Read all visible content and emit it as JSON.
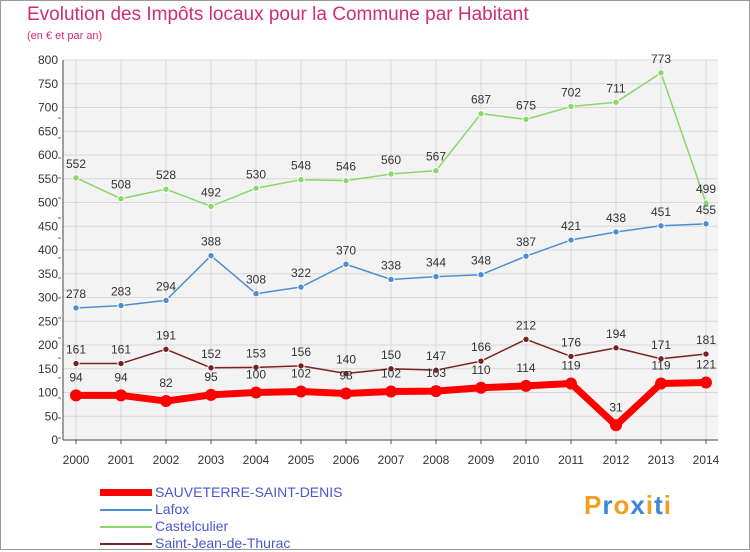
{
  "header": {
    "title": "Evolution des Impôts locaux pour la Commune par Habitant",
    "subtitle": "(en € et par an)"
  },
  "logo": {
    "text": "Proxiti",
    "colors": [
      "#f0a020",
      "#3d86d8",
      "#f0a020",
      "#3d86d8",
      "#f0a020",
      "#3d86d8",
      "#f0a020"
    ]
  },
  "chart_data": {
    "type": "line",
    "x": [
      "2000",
      "2001",
      "2002",
      "2003",
      "2004",
      "2005",
      "2006",
      "2007",
      "2008",
      "2009",
      "2010",
      "2011",
      "2012",
      "2013",
      "2014"
    ],
    "ylim": [
      0,
      800
    ],
    "yticks": [
      0,
      50,
      100,
      150,
      200,
      250,
      300,
      350,
      400,
      450,
      500,
      550,
      600,
      650,
      700,
      750,
      800
    ],
    "grid": true,
    "legend_placement": "bottom-left",
    "series": [
      {
        "name": "SAUVETERRE-SAINT-DENIS",
        "color": "#ff0000",
        "values": [
          94,
          94,
          82,
          95,
          100,
          102,
          98,
          102,
          103,
          110,
          114,
          119,
          31,
          119,
          121
        ]
      },
      {
        "name": "Lafox",
        "color": "#4c8fd0",
        "values": [
          278,
          283,
          294,
          388,
          308,
          322,
          370,
          338,
          344,
          348,
          387,
          421,
          438,
          451,
          455
        ]
      },
      {
        "name": "Castelculier",
        "color": "#88d86a",
        "values": [
          552,
          508,
          528,
          492,
          530,
          548,
          546,
          560,
          567,
          687,
          675,
          702,
          711,
          773,
          499
        ]
      },
      {
        "name": "Saint-Jean-de-Thurac",
        "color": "#7a2222",
        "values": [
          161,
          161,
          191,
          152,
          153,
          156,
          140,
          150,
          147,
          166,
          212,
          176,
          194,
          171,
          181
        ]
      }
    ]
  }
}
